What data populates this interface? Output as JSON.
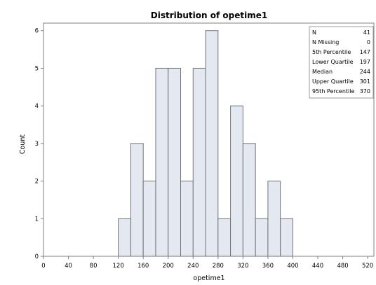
{
  "chart_data": {
    "type": "bar",
    "title": "Distribution of opetime1",
    "xlabel": "opetime1",
    "ylabel": "Count",
    "xlim": [
      0,
      530
    ],
    "ylim": [
      0,
      6.2
    ],
    "bin_width": 20,
    "bins": [
      {
        "start": 120,
        "count": 1
      },
      {
        "start": 140,
        "count": 3
      },
      {
        "start": 160,
        "count": 2
      },
      {
        "start": 180,
        "count": 5
      },
      {
        "start": 200,
        "count": 5
      },
      {
        "start": 220,
        "count": 2
      },
      {
        "start": 240,
        "count": 5
      },
      {
        "start": 260,
        "count": 6
      },
      {
        "start": 280,
        "count": 1
      },
      {
        "start": 300,
        "count": 4
      },
      {
        "start": 320,
        "count": 3
      },
      {
        "start": 340,
        "count": 1
      },
      {
        "start": 360,
        "count": 2
      },
      {
        "start": 380,
        "count": 1
      }
    ],
    "x_ticks": [
      0,
      40,
      80,
      120,
      160,
      200,
      240,
      280,
      320,
      360,
      400,
      440,
      480,
      520
    ],
    "y_ticks": [
      0,
      1,
      2,
      3,
      4,
      5,
      6
    ],
    "grid": false,
    "colors": {
      "bar_fill": "#e4e8f0",
      "bar_stroke": "#6f7479",
      "axis": "#808080"
    },
    "stats": {
      "rows": [
        {
          "label": "N",
          "value": "41"
        },
        {
          "label": "N Missing",
          "value": "0"
        },
        {
          "label": "5th Percentile",
          "value": "147"
        },
        {
          "label": "Lower Quartile",
          "value": "197"
        },
        {
          "label": "Median",
          "value": "244"
        },
        {
          "label": "Upper Quartile",
          "value": "301"
        },
        {
          "label": "95th Percentile",
          "value": "370"
        }
      ],
      "placement": "top-right"
    }
  }
}
